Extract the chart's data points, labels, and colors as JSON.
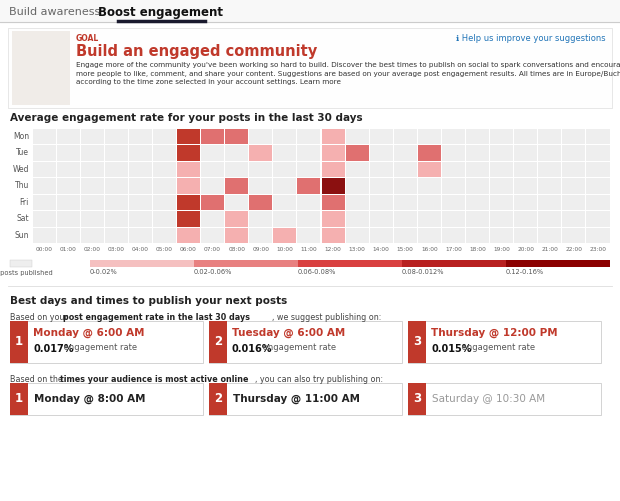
{
  "bg_color": "#ffffff",
  "tab_labels": [
    "Build awareness",
    "Boost engagement"
  ],
  "goal_label": "GOAL",
  "goal_title": "Build an engaged community",
  "help_text": "ℹ Help us improve your suggestions",
  "heatmap_title": "Average engagement rate for your posts in the last 30 days",
  "days": [
    "Mon",
    "Tue",
    "Wed",
    "Thu",
    "Fri",
    "Sat",
    "Sun"
  ],
  "hours": [
    "00:00",
    "01:00",
    "02:00",
    "03:00",
    "04:00",
    "05:00",
    "06:00",
    "07:00",
    "08:00",
    "09:00",
    "10:00",
    "11:00",
    "12:00",
    "13:00",
    "14:00",
    "15:00",
    "16:00",
    "17:00",
    "18:00",
    "19:00",
    "20:00",
    "21:00",
    "22:00",
    "23:00"
  ],
  "heatmap_data": [
    [
      0,
      0,
      0,
      0,
      0,
      0,
      4,
      3,
      3,
      0,
      0,
      0,
      2,
      0,
      0,
      0,
      0,
      0,
      0,
      0,
      0,
      0,
      0,
      0
    ],
    [
      0,
      0,
      0,
      0,
      0,
      0,
      4,
      0,
      0,
      2,
      0,
      0,
      2,
      3,
      0,
      0,
      3,
      0,
      0,
      0,
      0,
      0,
      0,
      0
    ],
    [
      0,
      0,
      0,
      0,
      0,
      0,
      2,
      0,
      0,
      0,
      0,
      0,
      2,
      0,
      0,
      0,
      2,
      0,
      0,
      0,
      0,
      0,
      0,
      0
    ],
    [
      0,
      0,
      0,
      0,
      0,
      0,
      2,
      0,
      3,
      0,
      0,
      3,
      5,
      0,
      0,
      0,
      0,
      0,
      0,
      0,
      0,
      0,
      0,
      0
    ],
    [
      0,
      0,
      0,
      0,
      0,
      0,
      4,
      3,
      0,
      3,
      0,
      0,
      3,
      0,
      0,
      0,
      0,
      0,
      0,
      0,
      0,
      0,
      0,
      0
    ],
    [
      0,
      0,
      0,
      0,
      0,
      0,
      4,
      0,
      2,
      0,
      0,
      0,
      2,
      0,
      0,
      0,
      0,
      0,
      0,
      0,
      0,
      0,
      0,
      0
    ],
    [
      0,
      0,
      0,
      0,
      0,
      0,
      2,
      0,
      2,
      0,
      2,
      0,
      2,
      0,
      0,
      0,
      0,
      0,
      0,
      0,
      0,
      0,
      0,
      0
    ]
  ],
  "color_map": {
    "0": "#eeeeee",
    "1": "#f7d0d0",
    "2": "#f5b0b0",
    "3": "#e07070",
    "4": "#c0392b",
    "5": "#8b1010"
  },
  "legend_bar_colors": [
    "#f5c0c0",
    "#e88080",
    "#d94040",
    "#b82020",
    "#8b0000"
  ],
  "legend_labels": [
    "No posts published",
    "0-0.02%",
    "0.02-0.06%",
    "0.06-0.08%",
    "0.08-0.012%",
    "0.12-0.16%"
  ],
  "section2_title": "Best days and times to publish your next posts",
  "engagement_suggestions": [
    {
      "rank": "1",
      "time": "Monday @ 6:00 AM",
      "rate_bold": "0.017%",
      "rate_normal": " engagement rate"
    },
    {
      "rank": "2",
      "time": "Tuesday @ 6:00 AM",
      "rate_bold": "0.016%",
      "rate_normal": " engagement rate"
    },
    {
      "rank": "3",
      "time": "Thursday @ 12:00 PM",
      "rate_bold": "0.015%",
      "rate_normal": " engagement rate"
    }
  ],
  "audience_suggestions": [
    {
      "rank": "1",
      "time": "Monday @ 8:00 AM",
      "grayed": false
    },
    {
      "rank": "2",
      "time": "Thursday @ 11:00 AM",
      "grayed": false
    },
    {
      "rank": "3",
      "time": "Saturday @ 10:30 AM",
      "grayed": true
    }
  ],
  "red_color": "#c0392b",
  "light_gray": "#f0f0f0",
  "border_gray": "#dddddd",
  "text_dark": "#222222",
  "text_mid": "#555555",
  "text_light": "#999999",
  "blue_link": "#2275b8"
}
